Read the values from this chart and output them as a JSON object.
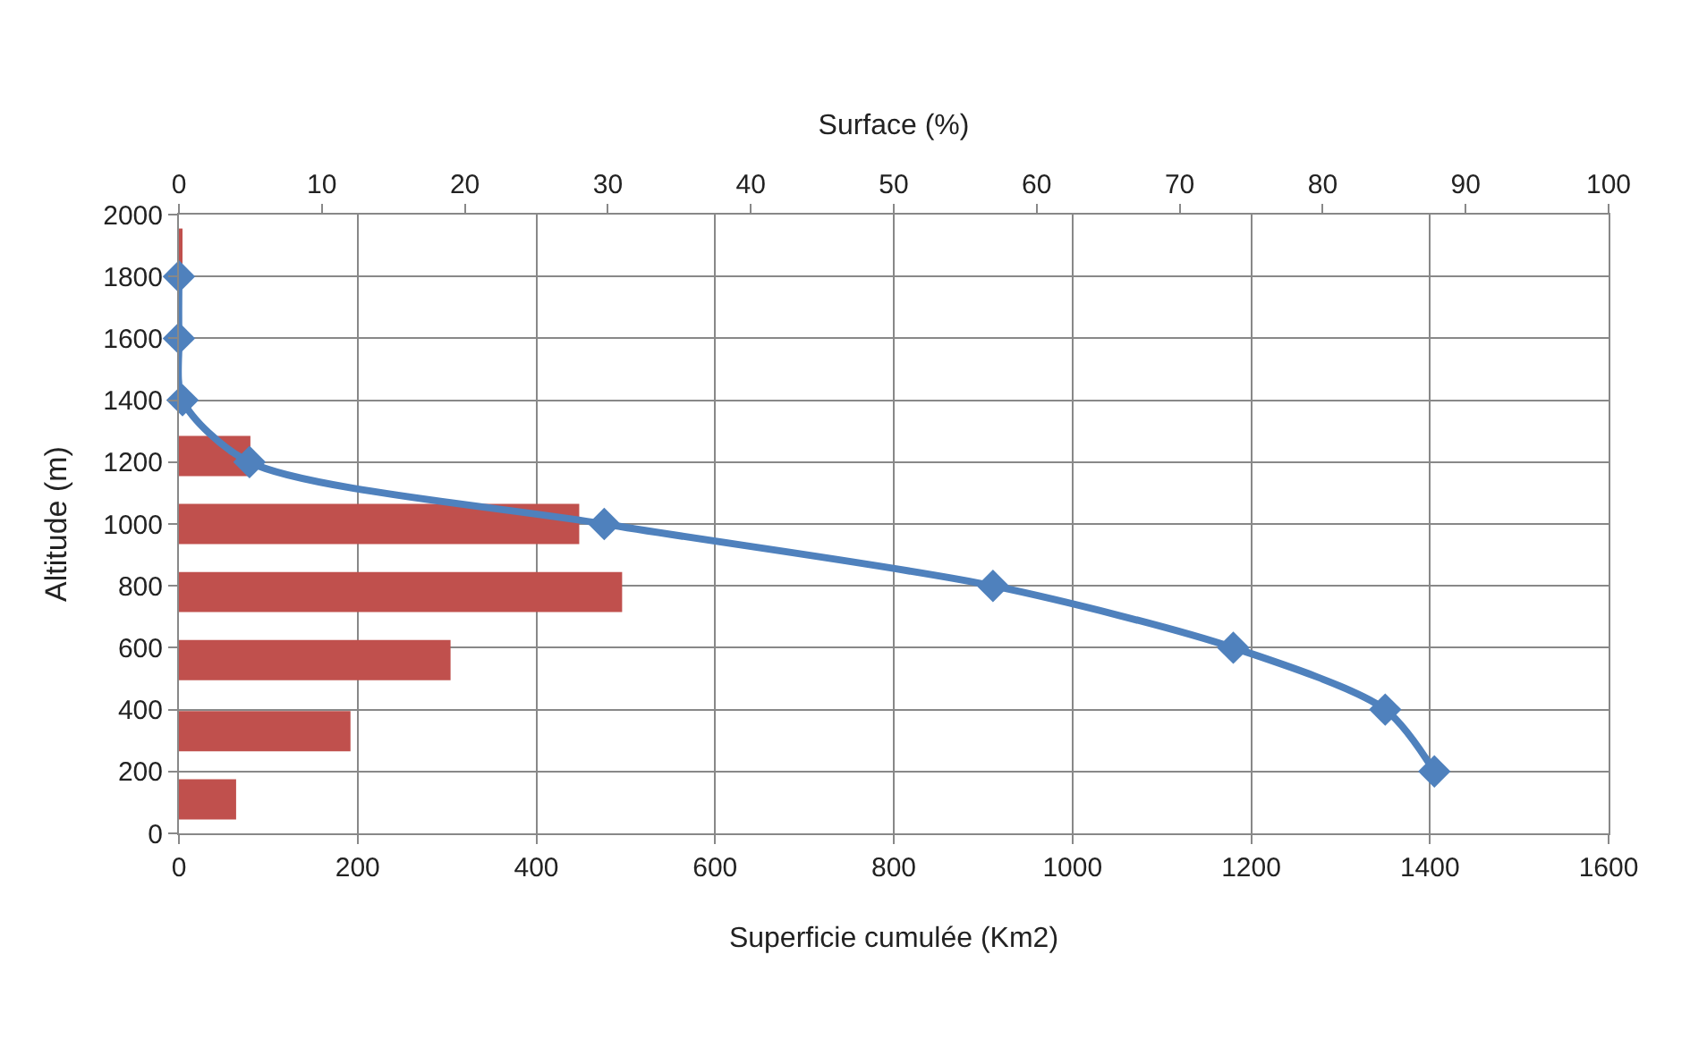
{
  "chart_data": {
    "type": "line",
    "orientation": "horizontal",
    "xlabel": "Superficie cumulée (Km2)",
    "x2label": "Surface (%)",
    "ylabel": "Altitude (m)",
    "xlim": [
      0,
      1600
    ],
    "xticks": [
      0,
      200,
      400,
      600,
      800,
      1000,
      1200,
      1400,
      1600
    ],
    "x2lim": [
      0,
      100
    ],
    "x2ticks": [
      0,
      10,
      20,
      30,
      40,
      50,
      60,
      70,
      80,
      90,
      100
    ],
    "ylim": [
      0,
      2000
    ],
    "yticks": [
      0,
      200,
      400,
      600,
      800,
      1000,
      1200,
      1400,
      1600,
      1800,
      2000
    ],
    "grid": true,
    "series": [
      {
        "type": "bar",
        "axis": "x2",
        "color": "#c0504d",
        "x": [
          110,
          330,
          560,
          780,
          1000,
          1220,
          1440,
          1670,
          1890
        ],
        "values": [
          4,
          12,
          19,
          31,
          28,
          5,
          0,
          0,
          0.2
        ]
      },
      {
        "color": "#4f81bd",
        "marker": "diamond",
        "line_style": "solid",
        "x": [
          200,
          400,
          600,
          800,
          1000,
          1200,
          1400,
          1600,
          1800
        ],
        "values": [
          1405,
          1350,
          1180,
          911,
          476,
          79,
          4,
          0,
          0
        ]
      }
    ]
  }
}
